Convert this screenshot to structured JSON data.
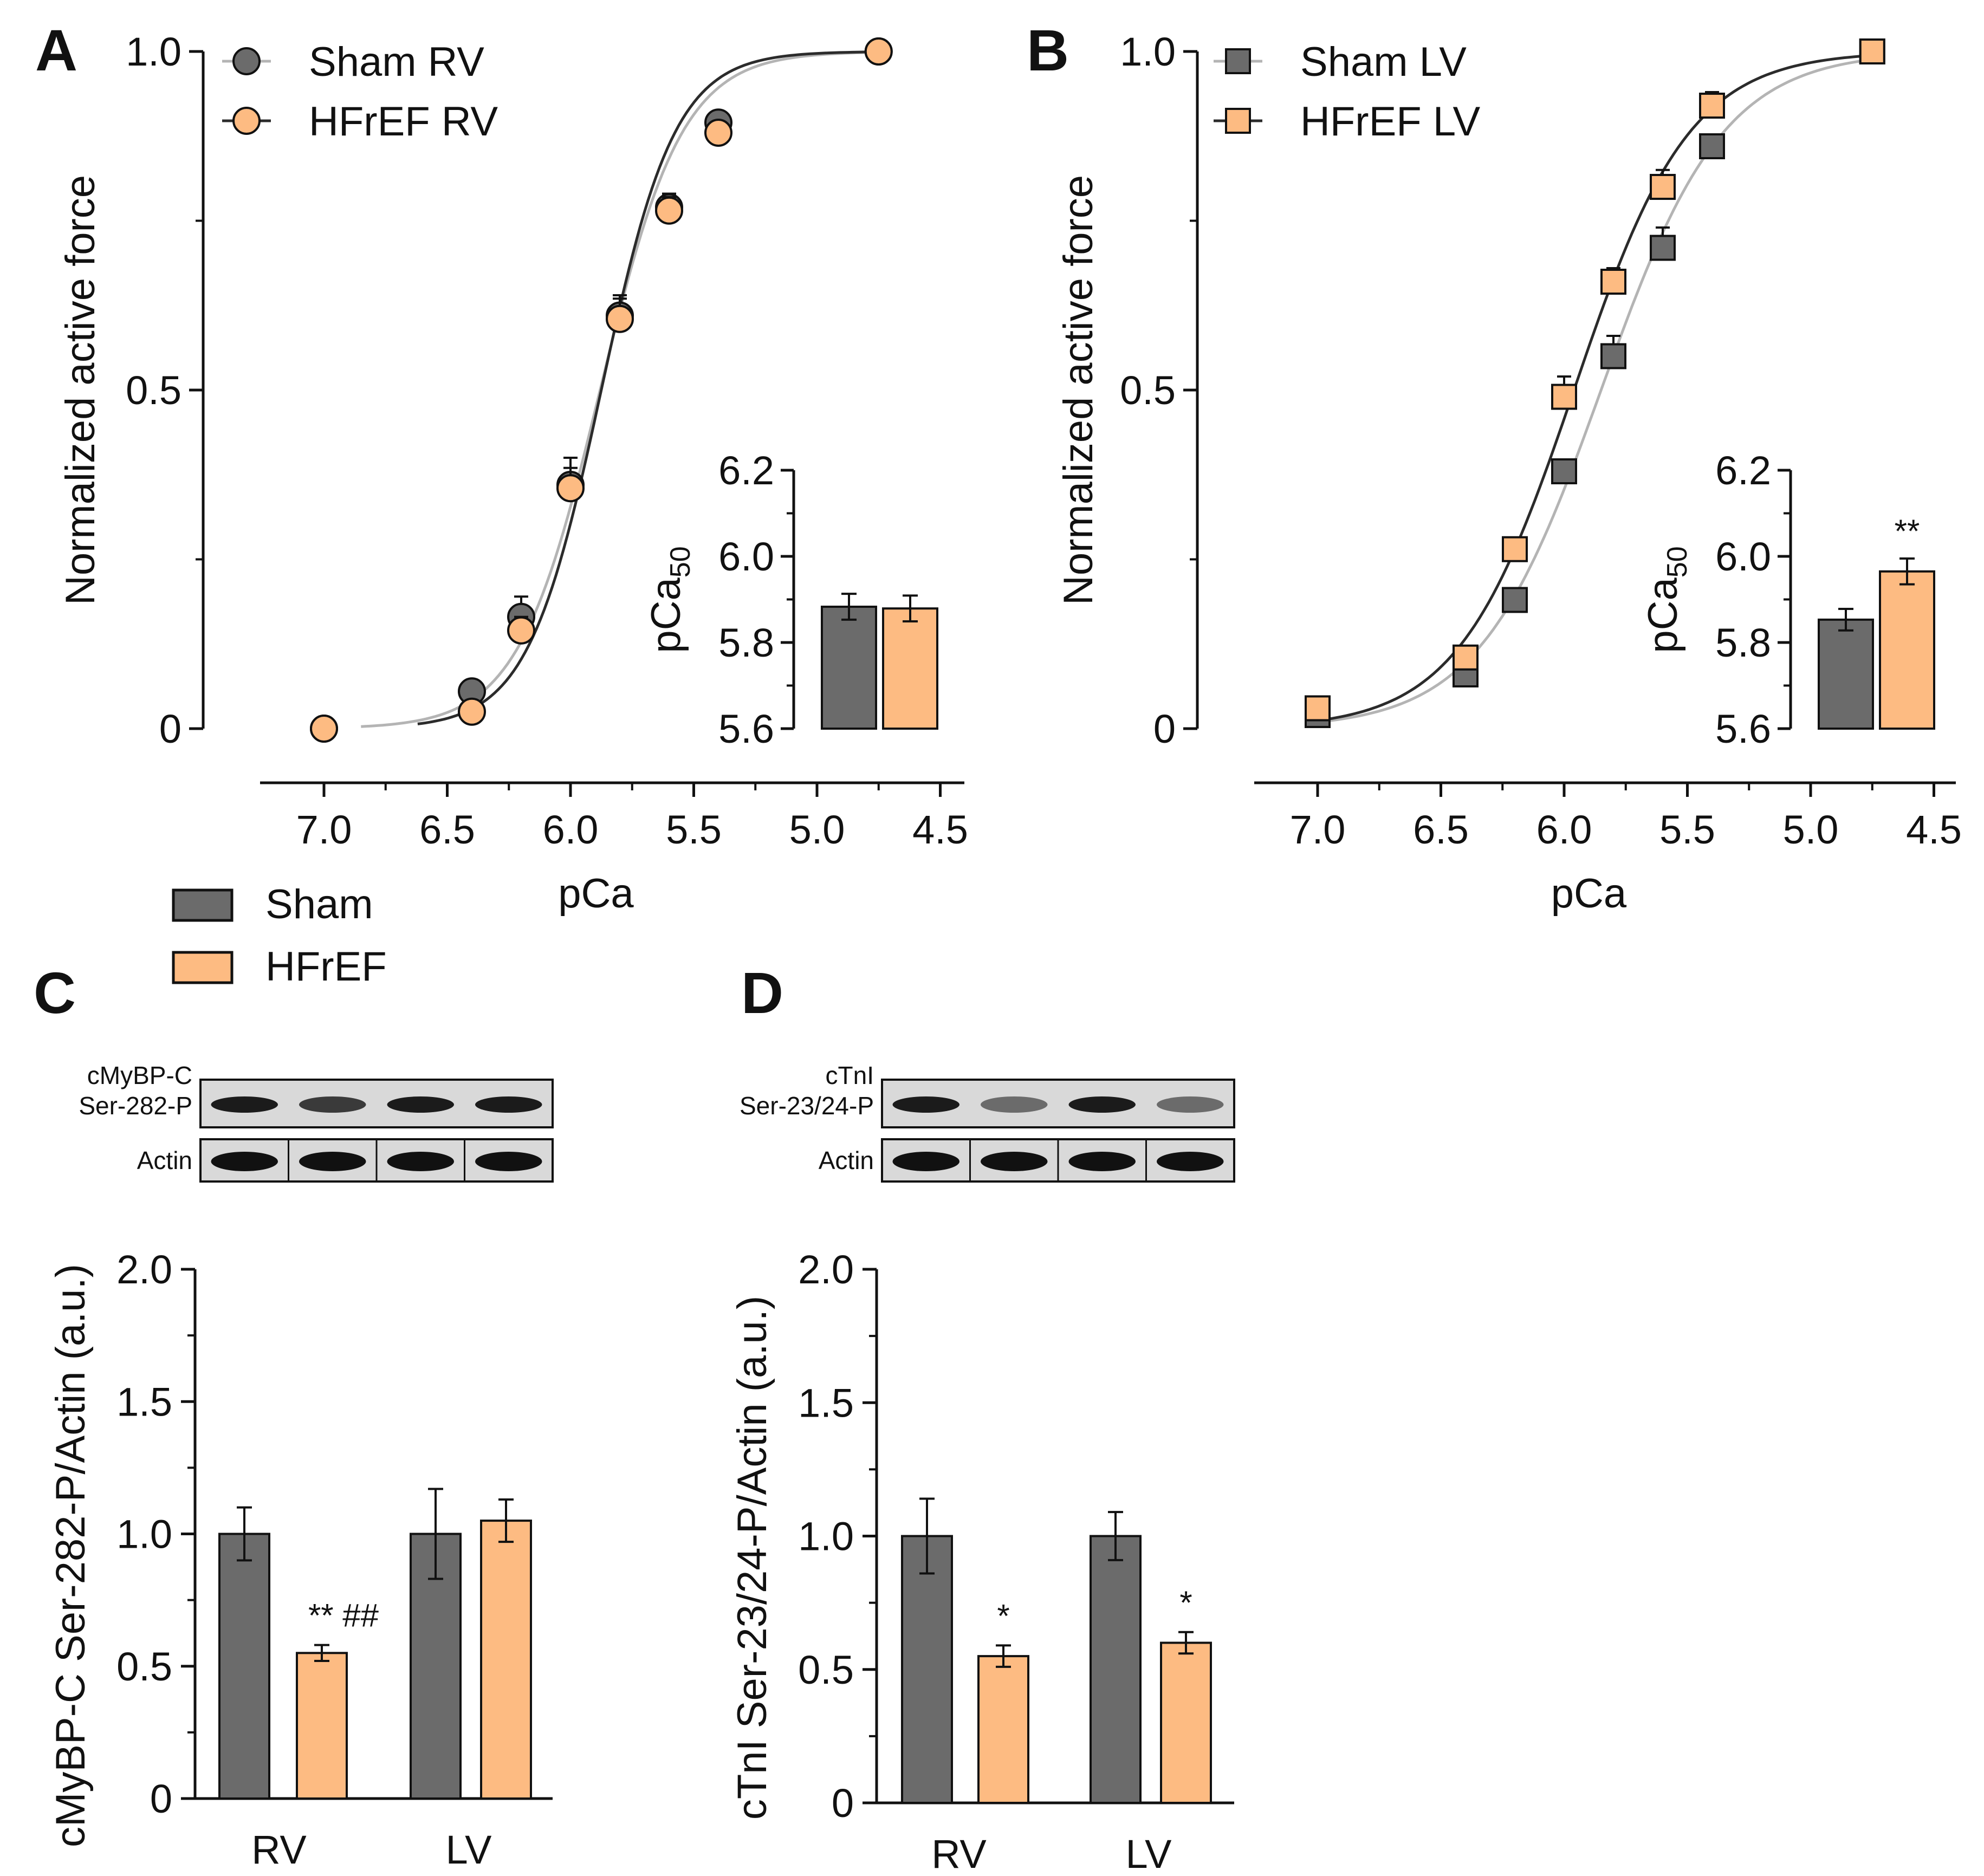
{
  "colors": {
    "sham": "#6b6b6b",
    "hfref": "#fdbb82",
    "axis": "#111111",
    "fit_sham": "#b4b4b4",
    "fit_hfref": "#2b2b2b"
  },
  "panels": [
    {
      "letter": "A",
      "type": "curve",
      "legend": [
        {
          "label": "Sham RV",
          "marker": "circle",
          "color": "#6b6b6b",
          "line": "#b4b4b4"
        },
        {
          "label": "HFrEF RV",
          "marker": "circle",
          "color": "#fdbb82",
          "line": "#2b2b2b"
        }
      ],
      "xlabel": "pCa",
      "ylabel": "Normalized active force",
      "xlim": [
        7.25,
        4.5
      ],
      "ylim": [
        0,
        1.0
      ],
      "xticks": [
        "7.0",
        "6.5",
        "6.0",
        "5.5",
        "5.0",
        "4.5"
      ],
      "yticks": [
        "0",
        "0.5",
        "1.0"
      ],
      "x": [
        7.0,
        6.4,
        6.2,
        6.0,
        5.8,
        5.6,
        5.4,
        4.75
      ],
      "series": [
        {
          "name": "Sham RV",
          "values": [
            0.0,
            0.055,
            0.165,
            0.36,
            0.61,
            0.77,
            0.895,
            1.0
          ],
          "err": [
            0.0,
            0.01,
            0.03,
            0.04,
            0.03,
            0.02,
            0.015,
            0.0
          ],
          "fit": {
            "pca50": 5.88,
            "nH": 2.6,
            "from": 6.85,
            "to": 4.75
          }
        },
        {
          "name": "HFrEF RV",
          "values": [
            0.0,
            0.025,
            0.145,
            0.355,
            0.605,
            0.765,
            0.88,
            1.0
          ],
          "err": [
            0.0,
            0.01,
            0.02,
            0.03,
            0.03,
            0.02,
            0.015,
            0.0
          ],
          "fit": {
            "pca50": 5.875,
            "nH": 2.9,
            "from": 6.62,
            "to": 4.75
          }
        }
      ],
      "inset": {
        "ylabel": "pCa50",
        "ylabel_main": "pCa",
        "ylabel_sub": "50",
        "ylim": [
          5.6,
          6.2
        ],
        "yticks": [
          "5.6",
          "5.8",
          "6.0",
          "6.2"
        ],
        "values": [
          5.883,
          5.879
        ],
        "err": [
          0.03,
          0.03
        ],
        "sig": [
          "",
          ""
        ]
      }
    },
    {
      "letter": "B",
      "type": "curve",
      "legend": [
        {
          "label": "Sham LV",
          "marker": "square",
          "color": "#6b6b6b",
          "line": "#b4b4b4"
        },
        {
          "label": "HFrEF LV",
          "marker": "square",
          "color": "#fdbb82",
          "line": "#2b2b2b"
        }
      ],
      "xlabel": "pCa",
      "ylabel": "Normalized active force",
      "xlim": [
        7.25,
        4.5
      ],
      "ylim": [
        0,
        1.0
      ],
      "xticks": [
        "7.0",
        "6.5",
        "6.0",
        "5.5",
        "5.0",
        "4.5"
      ],
      "yticks": [
        "0",
        "0.5",
        "1.0"
      ],
      "x": [
        7.0,
        6.4,
        6.2,
        6.0,
        5.8,
        5.6,
        5.4,
        4.75
      ],
      "series": [
        {
          "name": "Sham LV",
          "values": [
            0.02,
            0.08,
            0.19,
            0.38,
            0.55,
            0.71,
            0.86,
            1.0
          ],
          "err": [
            0.005,
            0.01,
            0.015,
            0.015,
            0.03,
            0.03,
            0.015,
            0.0
          ],
          "fit": {
            "pca50": 5.85,
            "nH": 1.75,
            "from": 7.0,
            "to": 4.75
          }
        },
        {
          "name": "HFrEF LV",
          "values": [
            0.03,
            0.105,
            0.265,
            0.49,
            0.66,
            0.8,
            0.92,
            1.0
          ],
          "err": [
            0.005,
            0.01,
            0.015,
            0.03,
            0.02,
            0.025,
            0.02,
            0.0
          ],
          "fit": {
            "pca50": 5.96,
            "nH": 1.85,
            "from": 7.0,
            "to": 4.75
          }
        }
      ],
      "inset": {
        "ylabel": "pCa50",
        "ylabel_main": "pCa",
        "ylabel_sub": "50",
        "ylim": [
          5.6,
          6.2
        ],
        "yticks": [
          "5.6",
          "5.8",
          "6.0",
          "6.2"
        ],
        "values": [
          5.853,
          5.965
        ],
        "err": [
          0.025,
          0.03
        ],
        "sig": [
          "",
          "**"
        ]
      }
    },
    {
      "letter": "C",
      "type": "bar",
      "blot": {
        "rows": [
          "cMyBP-C\nSer-282-P",
          "Actin"
        ],
        "lanes": 4
      },
      "ylabel": "cMyBP-C Ser-282-P/Actin (a.u.)",
      "ylim": [
        0,
        2.0
      ],
      "yticks": [
        "0",
        "0.5",
        "1.0",
        "1.5",
        "2.0"
      ],
      "categories": [
        "RV",
        "LV"
      ],
      "series": [
        {
          "name": "Sham",
          "values": [
            1.0,
            1.0
          ],
          "err": [
            0.1,
            0.17
          ],
          "sig": [
            "",
            ""
          ]
        },
        {
          "name": "HFrEF",
          "values": [
            0.55,
            1.05
          ],
          "err": [
            0.03,
            0.08
          ],
          "sig": [
            "** ##",
            ""
          ]
        }
      ]
    },
    {
      "letter": "D",
      "type": "bar",
      "blot": {
        "rows": [
          "cTnI\nSer-23/24-P",
          "Actin"
        ],
        "lanes": 4
      },
      "ylabel": "cTnI Ser-23/24-P/Actin (a.u.)",
      "ylim": [
        0,
        2.0
      ],
      "yticks": [
        "0",
        "0.5",
        "1.0",
        "1.5",
        "2.0"
      ],
      "categories": [
        "RV",
        "LV"
      ],
      "series": [
        {
          "name": "Sham",
          "values": [
            1.0,
            1.0
          ],
          "err": [
            0.14,
            0.09
          ],
          "sig": [
            "",
            ""
          ]
        },
        {
          "name": "HFrEF",
          "values": [
            0.55,
            0.6
          ],
          "err": [
            0.04,
            0.04
          ],
          "sig": [
            "*",
            "*"
          ]
        }
      ]
    }
  ],
  "group_legend": [
    {
      "label": "Sham",
      "color": "#6b6b6b"
    },
    {
      "label": "HFrEF",
      "color": "#fdbb82"
    }
  ]
}
